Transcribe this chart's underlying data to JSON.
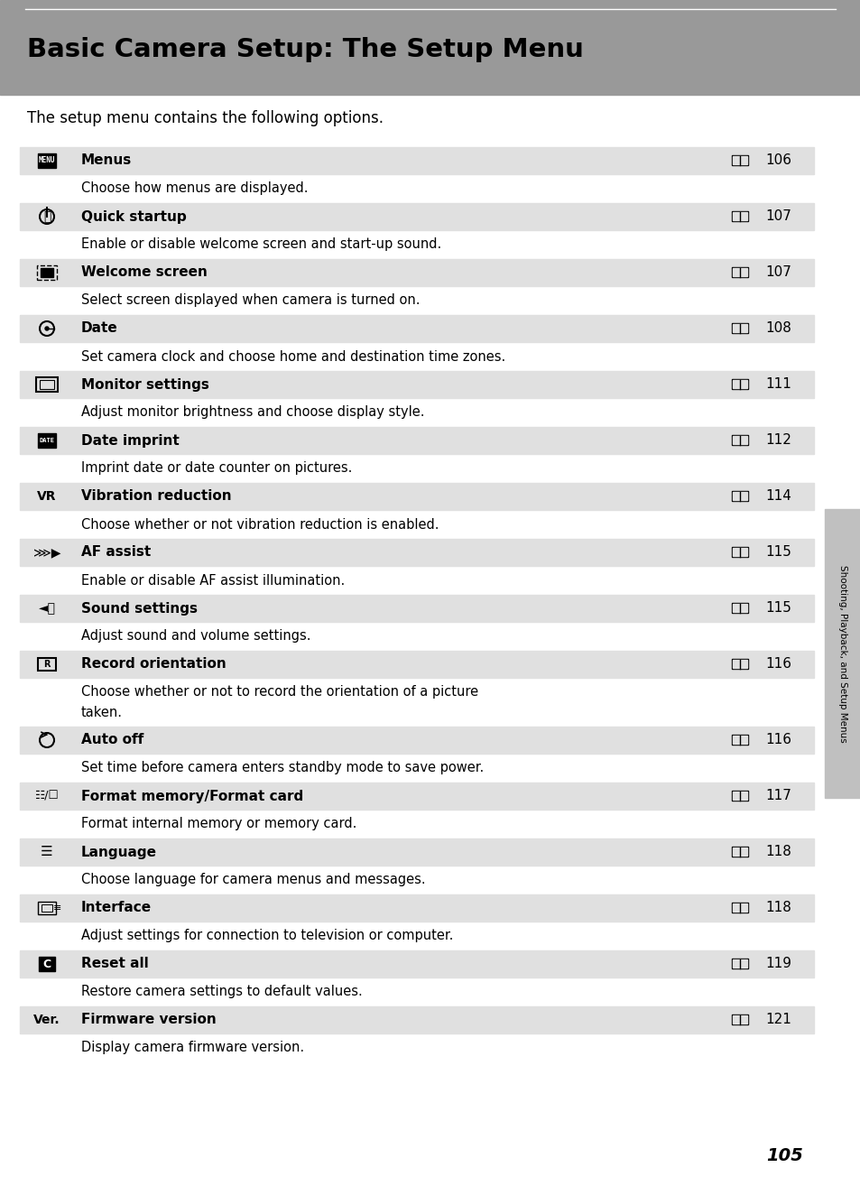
{
  "title": "Basic Camera Setup: The Setup Menu",
  "subtitle": "The setup menu contains the following options.",
  "header_bg": "#999999",
  "page_bg": "#ffffff",
  "row_bg_shaded": "#e0e0e0",
  "page_number": "105",
  "side_label": "Shooting, Playback, and Setup Menus",
  "items": [
    {
      "icon_label": "MENU",
      "icon_style": "box_white_text",
      "name": "Menus",
      "page_ref": "106",
      "description": "Choose how menus are displayed.",
      "desc_lines": 1
    },
    {
      "icon_label": "pwr",
      "icon_style": "outline",
      "name": "Quick startup",
      "page_ref": "107",
      "description": "Enable or disable welcome screen and start-up sound.",
      "desc_lines": 1
    },
    {
      "icon_label": "scr",
      "icon_style": "outline_sq",
      "name": "Welcome screen",
      "page_ref": "107",
      "description": "Select screen displayed when camera is turned on.",
      "desc_lines": 1
    },
    {
      "icon_label": "dt",
      "icon_style": "circle_icon",
      "name": "Date",
      "page_ref": "108",
      "description": "Set camera clock and choose home and destination time zones.",
      "desc_lines": 1
    },
    {
      "icon_label": "mon",
      "icon_style": "rect_icon",
      "name": "Monitor settings",
      "page_ref": "111",
      "description": "Adjust monitor brightness and choose display style.",
      "desc_lines": 1
    },
    {
      "icon_label": "DATE",
      "icon_style": "box_white_text_small",
      "name": "Date imprint",
      "page_ref": "112",
      "description": "Imprint date or date counter on pictures.",
      "desc_lines": 1
    },
    {
      "icon_label": "VR",
      "icon_style": "plain_bold",
      "name": "Vibration reduction",
      "page_ref": "114",
      "description": "Choose whether or not vibration reduction is enabled.",
      "desc_lines": 1
    },
    {
      "icon_label": "af",
      "icon_style": "af_icon",
      "name": "AF assist",
      "page_ref": "115",
      "description": "Enable or disable AF assist illumination.",
      "desc_lines": 1
    },
    {
      "icon_label": "snd",
      "icon_style": "sound_icon",
      "name": "Sound settings",
      "page_ref": "115",
      "description": "Adjust sound and volume settings.",
      "desc_lines": 1
    },
    {
      "icon_label": "rec",
      "icon_style": "rec_icon",
      "name": "Record orientation",
      "page_ref": "116",
      "description": "Choose whether or not to record the orientation of a picture\ntaken.",
      "desc_lines": 2
    },
    {
      "icon_label": "aoff",
      "icon_style": "aoff_icon",
      "name": "Auto off",
      "page_ref": "116",
      "description": "Set time before camera enters standby mode to save power.",
      "desc_lines": 1
    },
    {
      "icon_label": "fmt",
      "icon_style": "fmt_icon",
      "name": "Format memory/Format card",
      "page_ref": "117",
      "description": "Format internal memory or memory card.",
      "desc_lines": 1
    },
    {
      "icon_label": "lang",
      "icon_style": "lang_icon",
      "name": "Language",
      "page_ref": "118",
      "description": "Choose language for camera menus and messages.",
      "desc_lines": 1
    },
    {
      "icon_label": "iface",
      "icon_style": "iface_icon",
      "name": "Interface",
      "page_ref": "118",
      "description": "Adjust settings for connection to television or computer.",
      "desc_lines": 1
    },
    {
      "icon_label": "C",
      "icon_style": "box_white_text_c",
      "name": "Reset all",
      "page_ref": "119",
      "description": "Restore camera settings to default values.",
      "desc_lines": 1
    },
    {
      "icon_label": "Ver.",
      "icon_style": "plain_bold",
      "name": "Firmware version",
      "page_ref": "121",
      "description": "Display camera firmware version.",
      "desc_lines": 1
    }
  ]
}
